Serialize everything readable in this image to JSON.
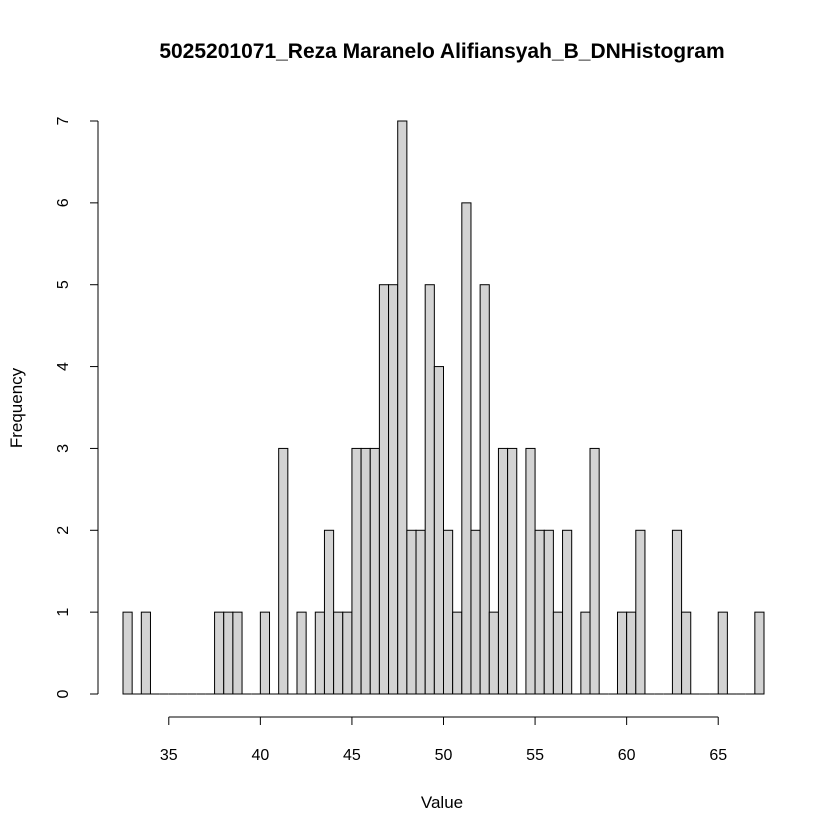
{
  "chart_data": {
    "type": "bar",
    "title": "5025201071_Reza Maranelo Alifiansyah_B_DNHistogram",
    "xlabel": "Value",
    "ylabel": "Frequency",
    "xlim": [
      32.5,
      67.5
    ],
    "ylim": [
      0,
      7
    ],
    "xticks": [
      "35",
      "40",
      "45",
      "50",
      "55",
      "60",
      "65"
    ],
    "yticks": [
      "0",
      "1",
      "2",
      "3",
      "4",
      "5",
      "6",
      "7"
    ],
    "bin_width": 0.5,
    "bin_start": 32.5,
    "values": [
      1,
      0,
      1,
      0,
      0,
      0,
      0,
      0,
      0,
      0,
      1,
      1,
      1,
      0,
      0,
      1,
      0,
      3,
      0,
      1,
      0,
      1,
      2,
      1,
      1,
      3,
      3,
      3,
      5,
      5,
      7,
      2,
      2,
      5,
      4,
      2,
      1,
      6,
      2,
      5,
      1,
      3,
      3,
      0,
      3,
      2,
      2,
      1,
      2,
      0,
      1,
      3,
      0,
      0,
      1,
      1,
      2,
      0,
      0,
      0,
      2,
      1,
      0,
      0,
      0,
      1,
      0,
      0,
      0,
      1
    ],
    "bar_fill": "#d3d3d3",
    "bar_stroke": "#000000",
    "grid": false,
    "legend": "none"
  }
}
